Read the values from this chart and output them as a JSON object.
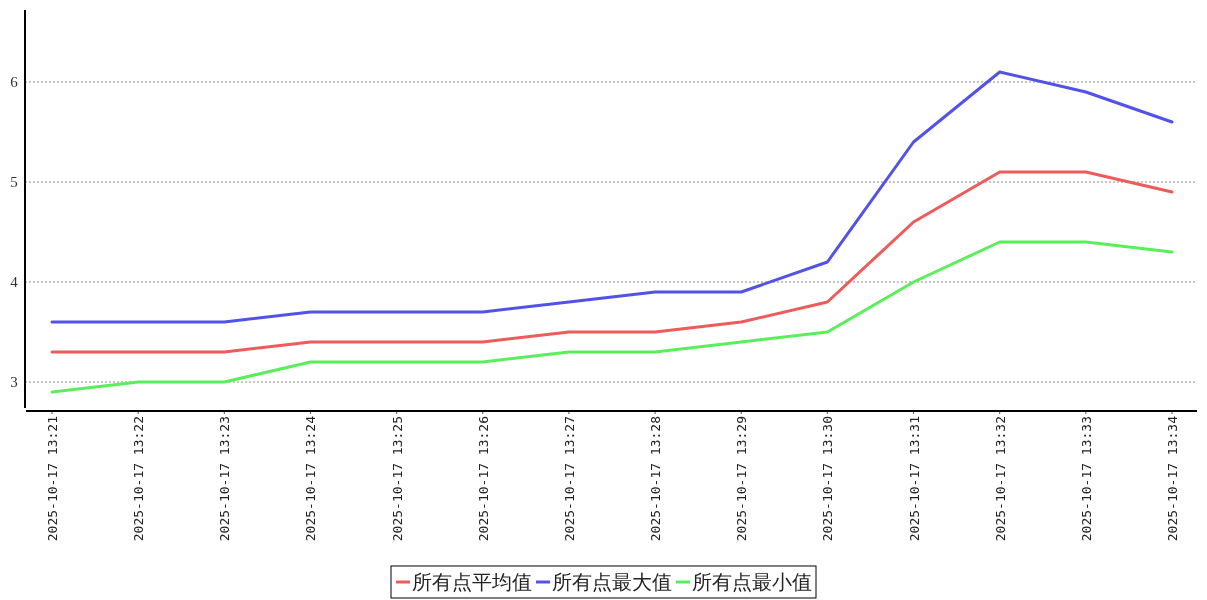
{
  "chart_data": {
    "type": "line",
    "categories": [
      "2025-10-17 13:21",
      "2025-10-17 13:22",
      "2025-10-17 13:23",
      "2025-10-17 13:24",
      "2025-10-17 13:25",
      "2025-10-17 13:26",
      "2025-10-17 13:27",
      "2025-10-17 13:28",
      "2025-10-17 13:29",
      "2025-10-17 13:30",
      "2025-10-17 13:31",
      "2025-10-17 13:32",
      "2025-10-17 13:33",
      "2025-10-17 13:34"
    ],
    "series": [
      {
        "name": "所有点平均值",
        "color": "#ef5a5a",
        "values": [
          3.3,
          3.3,
          3.3,
          3.4,
          3.4,
          3.4,
          3.5,
          3.5,
          3.6,
          3.8,
          4.6,
          5.1,
          5.1,
          4.9
        ]
      },
      {
        "name": "所有点最大值",
        "color": "#5252e8",
        "values": [
          3.6,
          3.6,
          3.6,
          3.7,
          3.7,
          3.7,
          3.8,
          3.9,
          3.9,
          4.2,
          5.4,
          6.1,
          5.9,
          5.6
        ]
      },
      {
        "name": "所有点最小值",
        "color": "#5aef5a",
        "values": [
          2.9,
          3.0,
          3.0,
          3.2,
          3.2,
          3.2,
          3.3,
          3.3,
          3.4,
          3.5,
          4.0,
          4.4,
          4.4,
          4.3
        ]
      }
    ],
    "ylim": [
      2.72,
      6.72
    ],
    "yticks": [
      3,
      4,
      5,
      6
    ],
    "grid": "y",
    "legend": "bottom",
    "marker": "none",
    "line_style": "solid"
  }
}
